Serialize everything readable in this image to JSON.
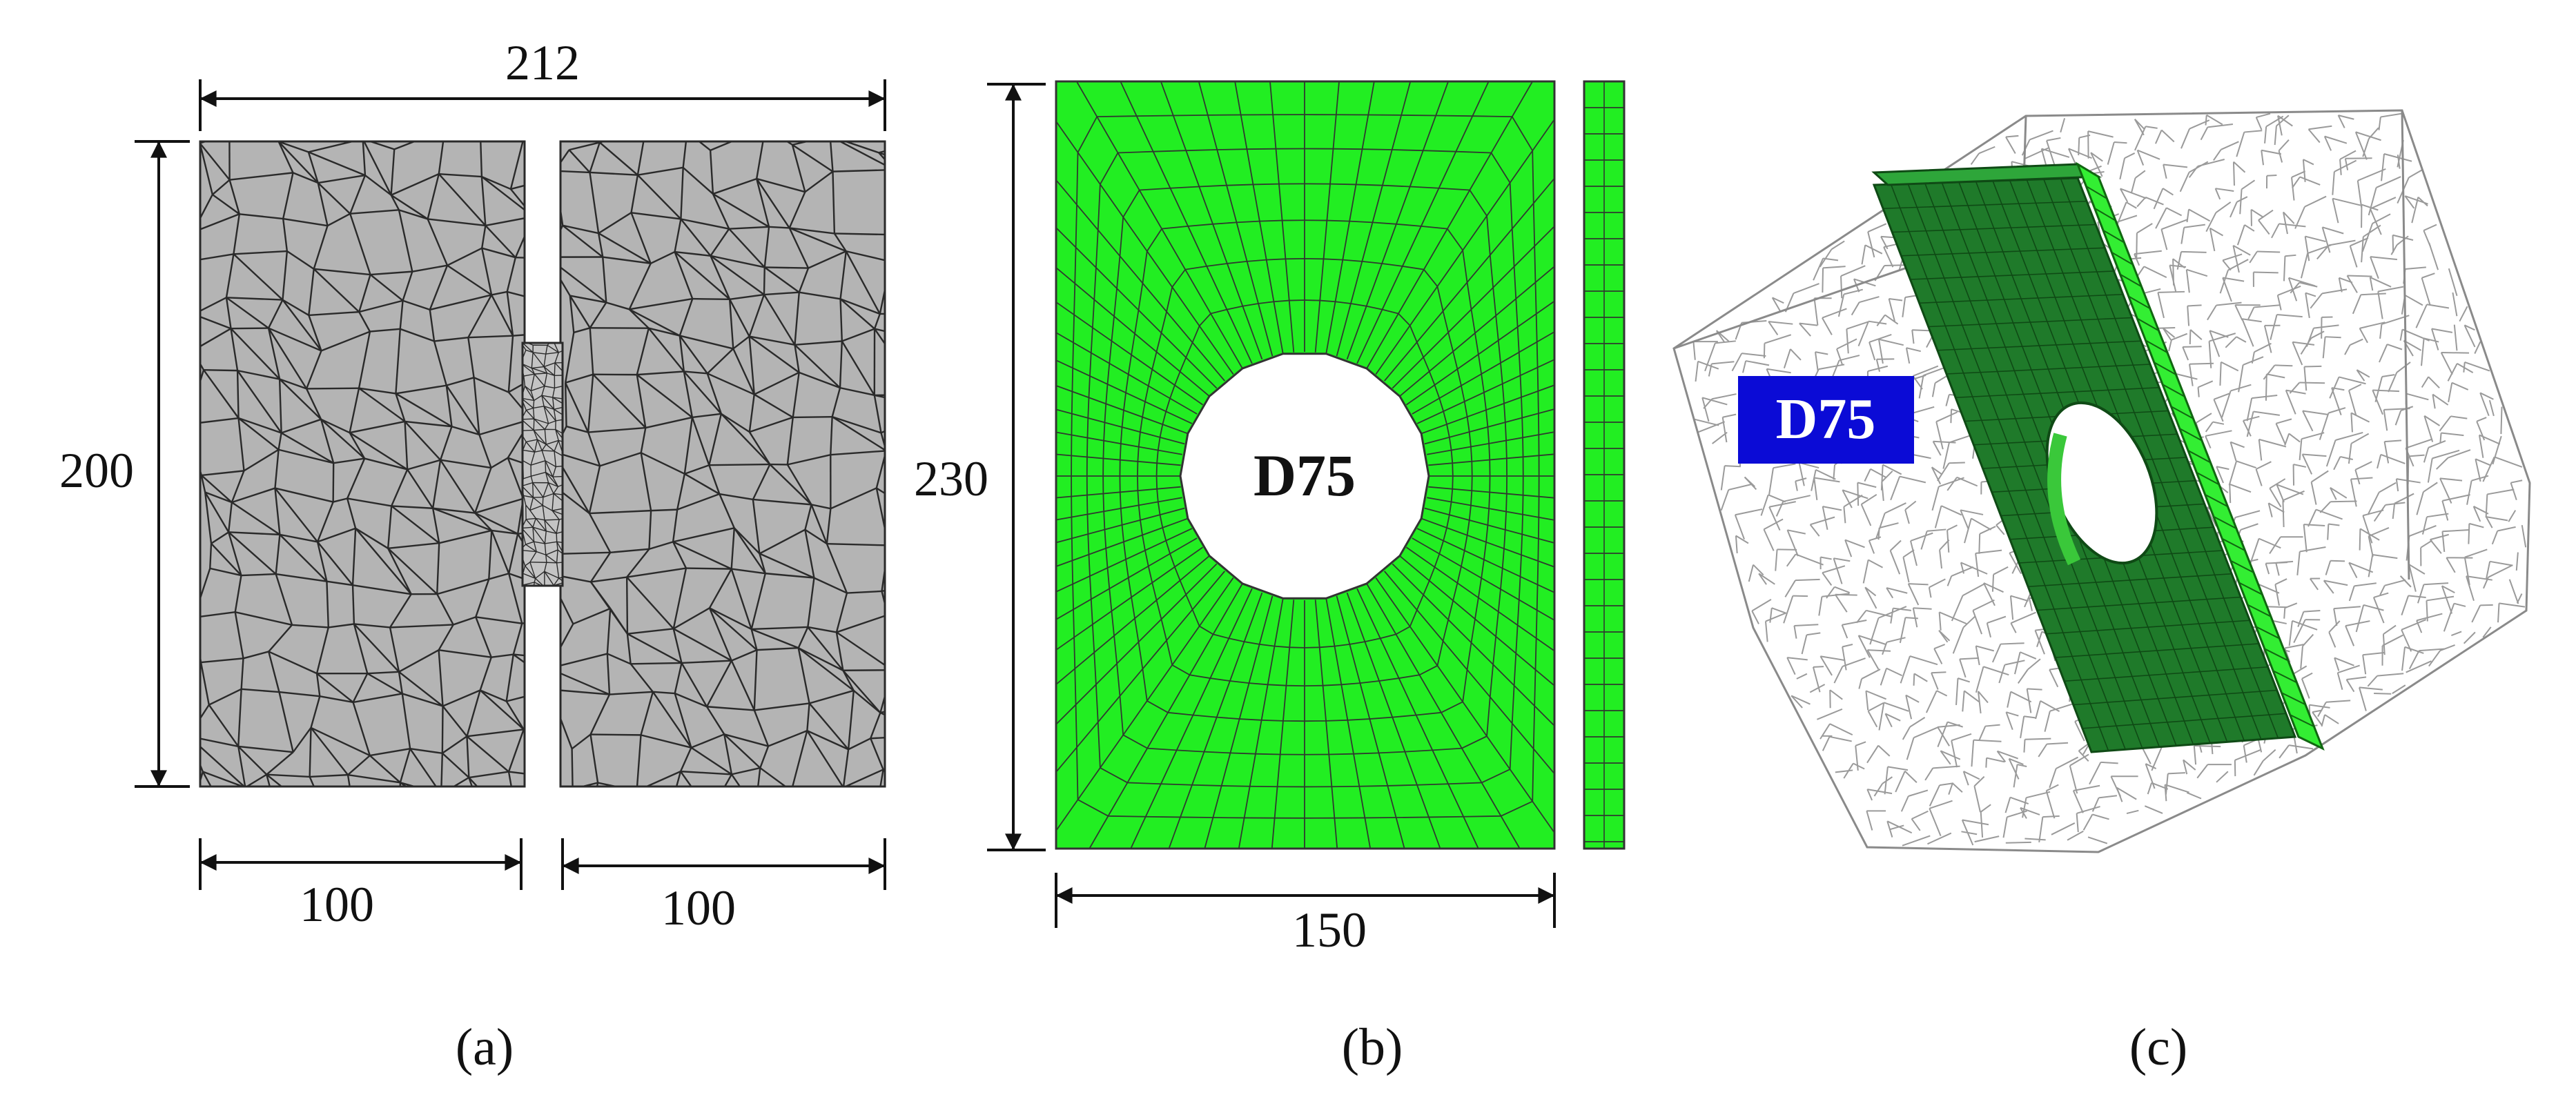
{
  "panels": {
    "a": {
      "caption": "(a)",
      "dimensions": {
        "total_width": "212",
        "height": "200",
        "left_width": "100",
        "right_width": "100"
      }
    },
    "b": {
      "caption": "(b)",
      "hole_label": "D75",
      "dimensions": {
        "height": "230",
        "width": "150"
      }
    },
    "c": {
      "caption": "(c)",
      "hole_label": "D75"
    }
  },
  "colors": {
    "concrete_fill": "#b4b4b4",
    "mesh_line": "#2a2a2a",
    "steel_plate": "#22ee22",
    "steel_plate_3d": "#1f7a2a",
    "label_box": "#0b0bd6",
    "wireframe": "#9a9a9a"
  }
}
